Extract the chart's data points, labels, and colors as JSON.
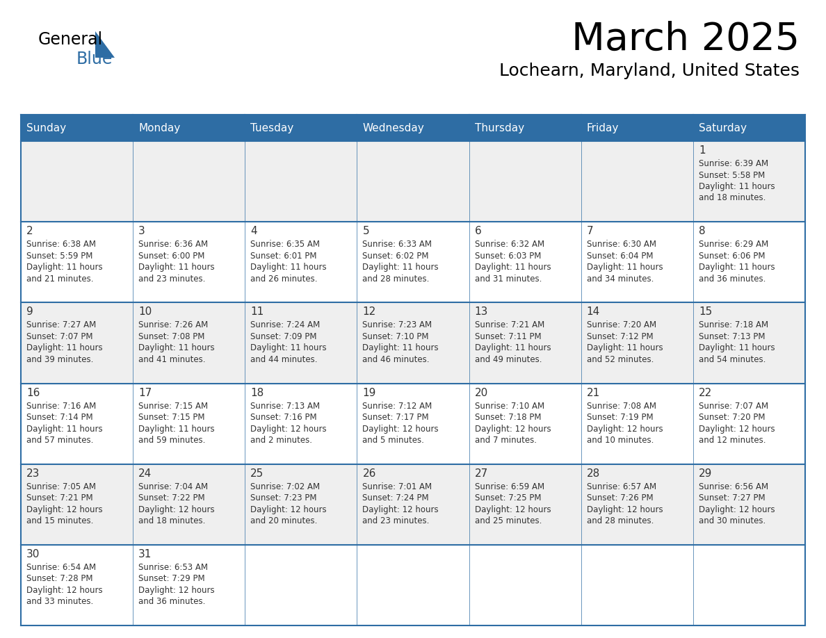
{
  "title": "March 2025",
  "subtitle": "Lochearn, Maryland, United States",
  "header_bg": "#2E6DA4",
  "header_text_color": "#FFFFFF",
  "cell_bg_odd": "#EFEFEF",
  "cell_bg_even": "#FFFFFF",
  "day_number_color": "#333333",
  "text_color": "#333333",
  "border_color": "#2E6DA4",
  "days_of_week": [
    "Sunday",
    "Monday",
    "Tuesday",
    "Wednesday",
    "Thursday",
    "Friday",
    "Saturday"
  ],
  "logo_text1": "General",
  "logo_text2": "Blue",
  "logo_color": "#2E6DA4",
  "calendar_data": [
    [
      null,
      null,
      null,
      null,
      null,
      null,
      {
        "day": 1,
        "sunrise": "6:39 AM",
        "sunset": "5:58 PM",
        "daylight": "11 hours and 18 minutes."
      }
    ],
    [
      {
        "day": 2,
        "sunrise": "6:38 AM",
        "sunset": "5:59 PM",
        "daylight": "11 hours and 21 minutes."
      },
      {
        "day": 3,
        "sunrise": "6:36 AM",
        "sunset": "6:00 PM",
        "daylight": "11 hours and 23 minutes."
      },
      {
        "day": 4,
        "sunrise": "6:35 AM",
        "sunset": "6:01 PM",
        "daylight": "11 hours and 26 minutes."
      },
      {
        "day": 5,
        "sunrise": "6:33 AM",
        "sunset": "6:02 PM",
        "daylight": "11 hours and 28 minutes."
      },
      {
        "day": 6,
        "sunrise": "6:32 AM",
        "sunset": "6:03 PM",
        "daylight": "11 hours and 31 minutes."
      },
      {
        "day": 7,
        "sunrise": "6:30 AM",
        "sunset": "6:04 PM",
        "daylight": "11 hours and 34 minutes."
      },
      {
        "day": 8,
        "sunrise": "6:29 AM",
        "sunset": "6:06 PM",
        "daylight": "11 hours and 36 minutes."
      }
    ],
    [
      {
        "day": 9,
        "sunrise": "7:27 AM",
        "sunset": "7:07 PM",
        "daylight": "11 hours and 39 minutes."
      },
      {
        "day": 10,
        "sunrise": "7:26 AM",
        "sunset": "7:08 PM",
        "daylight": "11 hours and 41 minutes."
      },
      {
        "day": 11,
        "sunrise": "7:24 AM",
        "sunset": "7:09 PM",
        "daylight": "11 hours and 44 minutes."
      },
      {
        "day": 12,
        "sunrise": "7:23 AM",
        "sunset": "7:10 PM",
        "daylight": "11 hours and 46 minutes."
      },
      {
        "day": 13,
        "sunrise": "7:21 AM",
        "sunset": "7:11 PM",
        "daylight": "11 hours and 49 minutes."
      },
      {
        "day": 14,
        "sunrise": "7:20 AM",
        "sunset": "7:12 PM",
        "daylight": "11 hours and 52 minutes."
      },
      {
        "day": 15,
        "sunrise": "7:18 AM",
        "sunset": "7:13 PM",
        "daylight": "11 hours and 54 minutes."
      }
    ],
    [
      {
        "day": 16,
        "sunrise": "7:16 AM",
        "sunset": "7:14 PM",
        "daylight": "11 hours and 57 minutes."
      },
      {
        "day": 17,
        "sunrise": "7:15 AM",
        "sunset": "7:15 PM",
        "daylight": "11 hours and 59 minutes."
      },
      {
        "day": 18,
        "sunrise": "7:13 AM",
        "sunset": "7:16 PM",
        "daylight": "12 hours and 2 minutes."
      },
      {
        "day": 19,
        "sunrise": "7:12 AM",
        "sunset": "7:17 PM",
        "daylight": "12 hours and 5 minutes."
      },
      {
        "day": 20,
        "sunrise": "7:10 AM",
        "sunset": "7:18 PM",
        "daylight": "12 hours and 7 minutes."
      },
      {
        "day": 21,
        "sunrise": "7:08 AM",
        "sunset": "7:19 PM",
        "daylight": "12 hours and 10 minutes."
      },
      {
        "day": 22,
        "sunrise": "7:07 AM",
        "sunset": "7:20 PM",
        "daylight": "12 hours and 12 minutes."
      }
    ],
    [
      {
        "day": 23,
        "sunrise": "7:05 AM",
        "sunset": "7:21 PM",
        "daylight": "12 hours and 15 minutes."
      },
      {
        "day": 24,
        "sunrise": "7:04 AM",
        "sunset": "7:22 PM",
        "daylight": "12 hours and 18 minutes."
      },
      {
        "day": 25,
        "sunrise": "7:02 AM",
        "sunset": "7:23 PM",
        "daylight": "12 hours and 20 minutes."
      },
      {
        "day": 26,
        "sunrise": "7:01 AM",
        "sunset": "7:24 PM",
        "daylight": "12 hours and 23 minutes."
      },
      {
        "day": 27,
        "sunrise": "6:59 AM",
        "sunset": "7:25 PM",
        "daylight": "12 hours and 25 minutes."
      },
      {
        "day": 28,
        "sunrise": "6:57 AM",
        "sunset": "7:26 PM",
        "daylight": "12 hours and 28 minutes."
      },
      {
        "day": 29,
        "sunrise": "6:56 AM",
        "sunset": "7:27 PM",
        "daylight": "12 hours and 30 minutes."
      }
    ],
    [
      {
        "day": 30,
        "sunrise": "6:54 AM",
        "sunset": "7:28 PM",
        "daylight": "12 hours and 33 minutes."
      },
      {
        "day": 31,
        "sunrise": "6:53 AM",
        "sunset": "7:29 PM",
        "daylight": "12 hours and 36 minutes."
      },
      null,
      null,
      null,
      null,
      null
    ]
  ]
}
